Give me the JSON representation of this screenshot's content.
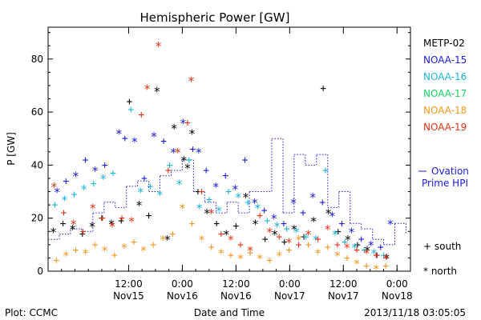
{
  "chart_data": {
    "type": "scatter",
    "title": "Hemispheric Power [GW]",
    "ylabel": "P [GW]",
    "xlabel": "Date and Time",
    "ylim": [
      0,
      92
    ],
    "yticks": [
      0,
      20,
      40,
      60,
      80
    ],
    "xlim": [
      "2013-11-14T18:00",
      "2013-11-18T03:00"
    ],
    "xticks": [
      {
        "t": "2013-11-15T12:00",
        "line1": "12:00",
        "line2": "Nov15"
      },
      {
        "t": "2013-11-16T00:00",
        "line1": "0:00",
        "line2": "Nov16"
      },
      {
        "t": "2013-11-16T12:00",
        "line1": "12:00",
        "line2": "Nov16"
      },
      {
        "t": "2013-11-17T00:00",
        "line1": "0:00",
        "line2": "Nov17"
      },
      {
        "t": "2013-11-17T12:00",
        "line1": "12:00",
        "line2": "Nov17"
      },
      {
        "t": "2013-11-18T00:00",
        "line1": "0:00",
        "line2": "Nov18"
      }
    ],
    "series": [
      {
        "name": "METP-02",
        "color": "#000000",
        "points": [
          [
            "2013-11-14T19:10",
            15,
            "n"
          ],
          [
            "2013-11-14T21:20",
            18,
            "s"
          ],
          [
            "2013-11-14T23:30",
            16,
            "n"
          ],
          [
            "2013-11-15T01:40",
            14,
            "s"
          ],
          [
            "2013-11-15T03:50",
            17,
            "n"
          ],
          [
            "2013-11-15T06:00",
            20,
            "s"
          ],
          [
            "2013-11-15T08:10",
            18,
            "n"
          ],
          [
            "2013-11-15T10:20",
            19,
            "s"
          ],
          [
            "2013-11-15T12:10",
            64,
            "s"
          ],
          [
            "2013-11-15T14:20",
            25,
            "n"
          ],
          [
            "2013-11-15T16:30",
            21,
            "s"
          ],
          [
            "2013-11-15T18:20",
            68,
            "n"
          ],
          [
            "2013-11-15T20:40",
            12,
            "n"
          ],
          [
            "2013-11-15T22:10",
            54,
            "n"
          ],
          [
            "2013-11-16T00:20",
            42,
            "n"
          ],
          [
            "2013-11-16T01:10",
            39,
            "n"
          ],
          [
            "2013-11-16T02:10",
            52,
            "n"
          ],
          [
            "2013-11-16T03:30",
            30,
            "s"
          ],
          [
            "2013-11-16T05:30",
            22,
            "n"
          ],
          [
            "2013-11-16T07:40",
            18,
            "s"
          ],
          [
            "2013-11-16T09:50",
            14,
            "n"
          ],
          [
            "2013-11-16T12:00",
            17,
            "s"
          ],
          [
            "2013-11-16T14:10",
            28,
            "n"
          ],
          [
            "2013-11-16T16:20",
            18,
            "n"
          ],
          [
            "2013-11-16T18:30",
            12,
            "s"
          ],
          [
            "2013-11-16T20:40",
            14,
            "n"
          ],
          [
            "2013-11-16T22:50",
            11,
            "s"
          ],
          [
            "2013-11-17T01:00",
            16,
            "n"
          ],
          [
            "2013-11-17T03:10",
            13,
            "s"
          ],
          [
            "2013-11-17T05:20",
            19,
            "n"
          ],
          [
            "2013-11-17T07:30",
            69,
            "s"
          ],
          [
            "2013-11-17T08:40",
            22,
            "n"
          ],
          [
            "2013-11-17T10:50",
            15,
            "s"
          ],
          [
            "2013-11-17T13:00",
            12,
            "n"
          ],
          [
            "2013-11-17T15:10",
            10,
            "s"
          ],
          [
            "2013-11-17T17:20",
            8,
            "n"
          ],
          [
            "2013-11-17T19:30",
            6,
            "s"
          ],
          [
            "2013-11-17T21:40",
            5,
            "n"
          ]
        ]
      },
      {
        "name": "NOAA-15",
        "color": "#1a1adc",
        "points": [
          [
            "2013-11-14T20:00",
            30,
            "n"
          ],
          [
            "2013-11-14T22:00",
            34,
            "s"
          ],
          [
            "2013-11-15T00:10",
            36,
            "n"
          ],
          [
            "2013-11-15T02:20",
            42,
            "s"
          ],
          [
            "2013-11-15T04:30",
            38,
            "n"
          ],
          [
            "2013-11-15T06:40",
            40,
            "s"
          ],
          [
            "2013-11-15T09:50",
            52,
            "n"
          ],
          [
            "2013-11-15T11:10",
            50,
            "s"
          ],
          [
            "2013-11-15T13:20",
            49,
            "n"
          ],
          [
            "2013-11-15T15:30",
            35,
            "s"
          ],
          [
            "2013-11-15T17:40",
            51,
            "n"
          ],
          [
            "2013-11-15T19:50",
            49,
            "s"
          ],
          [
            "2013-11-15T22:00",
            45,
            "n"
          ],
          [
            "2013-11-16T00:10",
            56,
            "n"
          ],
          [
            "2013-11-16T02:20",
            46,
            "s"
          ],
          [
            "2013-11-16T03:40",
            45,
            "n"
          ],
          [
            "2013-11-16T05:20",
            38,
            "s"
          ],
          [
            "2013-11-16T07:30",
            32,
            "n"
          ],
          [
            "2013-11-16T09:40",
            36,
            "s"
          ],
          [
            "2013-11-16T11:50",
            31,
            "n"
          ],
          [
            "2013-11-16T14:00",
            42,
            "s"
          ],
          [
            "2013-11-16T16:10",
            26,
            "n"
          ],
          [
            "2013-11-16T18:20",
            23,
            "s"
          ],
          [
            "2013-11-16T20:30",
            20,
            "n"
          ],
          [
            "2013-11-16T22:40",
            18,
            "s"
          ],
          [
            "2013-11-17T00:50",
            26,
            "n"
          ],
          [
            "2013-11-17T03:00",
            22,
            "s"
          ],
          [
            "2013-11-17T05:10",
            28,
            "n"
          ],
          [
            "2013-11-17T07:20",
            26,
            "s"
          ],
          [
            "2013-11-17T09:30",
            21,
            "n"
          ],
          [
            "2013-11-17T11:40",
            18,
            "s"
          ],
          [
            "2013-11-17T13:50",
            15,
            "n"
          ],
          [
            "2013-11-17T16:00",
            12,
            "s"
          ],
          [
            "2013-11-17T18:10",
            10,
            "n"
          ],
          [
            "2013-11-17T20:20",
            9,
            "s"
          ],
          [
            "2013-11-17T22:30",
            18,
            "n"
          ]
        ]
      },
      {
        "name": "NOAA-16",
        "color": "#19b4d7",
        "points": [
          [
            "2013-11-14T19:30",
            25,
            "s"
          ],
          [
            "2013-11-14T21:40",
            27,
            "n"
          ],
          [
            "2013-11-14T23:50",
            29,
            "s"
          ],
          [
            "2013-11-15T02:00",
            31,
            "n"
          ],
          [
            "2013-11-15T04:10",
            33,
            "s"
          ],
          [
            "2013-11-15T06:20",
            35,
            "n"
          ],
          [
            "2013-11-15T08:30",
            37,
            "s"
          ],
          [
            "2013-11-15T12:30",
            61,
            "s"
          ],
          [
            "2013-11-15T14:40",
            30,
            "n"
          ],
          [
            "2013-11-15T16:50",
            32,
            "s"
          ],
          [
            "2013-11-15T19:00",
            29,
            "n"
          ],
          [
            "2013-11-15T21:10",
            40,
            "s"
          ],
          [
            "2013-11-15T23:20",
            33,
            "n"
          ],
          [
            "2013-11-16T01:30",
            42,
            "s"
          ],
          [
            "2013-11-16T03:50",
            24,
            "n"
          ],
          [
            "2013-11-16T06:00",
            27,
            "s"
          ],
          [
            "2013-11-16T08:10",
            23,
            "n"
          ],
          [
            "2013-11-16T10:20",
            30,
            "s"
          ],
          [
            "2013-11-16T12:30",
            28,
            "n"
          ],
          [
            "2013-11-16T14:40",
            26,
            "s"
          ],
          [
            "2013-11-16T16:50",
            24,
            "n"
          ],
          [
            "2013-11-16T19:00",
            19,
            "s"
          ],
          [
            "2013-11-16T21:10",
            17,
            "n"
          ],
          [
            "2013-11-16T23:20",
            16,
            "s"
          ],
          [
            "2013-11-17T01:30",
            15,
            "n"
          ],
          [
            "2013-11-17T03:40",
            13,
            "s"
          ],
          [
            "2013-11-17T05:50",
            12,
            "n"
          ],
          [
            "2013-11-17T08:00",
            38,
            "s"
          ],
          [
            "2013-11-17T10:10",
            14,
            "n"
          ],
          [
            "2013-11-17T12:20",
            11,
            "s"
          ],
          [
            "2013-11-17T14:30",
            9,
            "n"
          ],
          [
            "2013-11-17T16:40",
            8,
            "s"
          ],
          [
            "2013-11-17T18:50",
            7,
            "n"
          ],
          [
            "2013-11-17T21:00",
            6,
            "s"
          ]
        ]
      },
      {
        "name": "NOAA-17",
        "color": "#19d264",
        "points": []
      },
      {
        "name": "NOAA-18",
        "color": "#f5961e",
        "points": [
          [
            "2013-11-14T19:50",
            4,
            "s"
          ],
          [
            "2013-11-14T22:00",
            6,
            "n"
          ],
          [
            "2013-11-15T00:10",
            8,
            "s"
          ],
          [
            "2013-11-15T02:20",
            7,
            "n"
          ],
          [
            "2013-11-15T04:30",
            10,
            "s"
          ],
          [
            "2013-11-15T06:40",
            8,
            "n"
          ],
          [
            "2013-11-15T08:50",
            6,
            "s"
          ],
          [
            "2013-11-15T11:00",
            9,
            "n"
          ],
          [
            "2013-11-15T13:10",
            11,
            "s"
          ],
          [
            "2013-11-15T15:20",
            8,
            "n"
          ],
          [
            "2013-11-15T17:30",
            10,
            "s"
          ],
          [
            "2013-11-15T19:40",
            12,
            "n"
          ],
          [
            "2013-11-15T21:50",
            14,
            "s"
          ],
          [
            "2013-11-16T00:00",
            24,
            "n"
          ],
          [
            "2013-11-16T02:10",
            18,
            "s"
          ],
          [
            "2013-11-16T04:20",
            12,
            "n"
          ],
          [
            "2013-11-16T06:30",
            9,
            "s"
          ],
          [
            "2013-11-16T08:40",
            7,
            "n"
          ],
          [
            "2013-11-16T10:50",
            6,
            "s"
          ],
          [
            "2013-11-16T13:00",
            5,
            "n"
          ],
          [
            "2013-11-16T15:10",
            7,
            "s"
          ],
          [
            "2013-11-16T17:20",
            5,
            "n"
          ],
          [
            "2013-11-16T19:30",
            4,
            "s"
          ],
          [
            "2013-11-16T21:40",
            6,
            "n"
          ],
          [
            "2013-11-16T23:50",
            8,
            "s"
          ],
          [
            "2013-11-17T02:00",
            12,
            "n"
          ],
          [
            "2013-11-17T04:10",
            10,
            "s"
          ],
          [
            "2013-11-17T06:20",
            7,
            "n"
          ],
          [
            "2013-11-17T08:30",
            9,
            "s"
          ],
          [
            "2013-11-17T10:40",
            6,
            "n"
          ],
          [
            "2013-11-17T12:50",
            5,
            "s"
          ],
          [
            "2013-11-17T15:00",
            3,
            "n"
          ],
          [
            "2013-11-17T17:10",
            2,
            "s"
          ],
          [
            "2013-11-17T19:20",
            1,
            "n"
          ],
          [
            "2013-11-17T21:30",
            2,
            "s"
          ]
        ]
      },
      {
        "name": "NOAA-19",
        "color": "#e63214",
        "points": [
          [
            "2013-11-14T19:20",
            32,
            "n"
          ],
          [
            "2013-11-14T21:30",
            22,
            "s"
          ],
          [
            "2013-11-14T23:40",
            18,
            "n"
          ],
          [
            "2013-11-15T01:50",
            15,
            "s"
          ],
          [
            "2013-11-15T04:00",
            24,
            "n"
          ],
          [
            "2013-11-15T06:10",
            20,
            "s"
          ],
          [
            "2013-11-15T08:20",
            17,
            "n"
          ],
          [
            "2013-11-15T10:30",
            20,
            "s"
          ],
          [
            "2013-11-15T12:40",
            19,
            "n"
          ],
          [
            "2013-11-15T14:50",
            59,
            "s"
          ],
          [
            "2013-11-15T16:10",
            69,
            "n"
          ],
          [
            "2013-11-15T18:40",
            85,
            "n"
          ],
          [
            "2013-11-15T20:50",
            38,
            "s"
          ],
          [
            "2013-11-15T23:00",
            45,
            "n"
          ],
          [
            "2013-11-16T01:10",
            56,
            "s"
          ],
          [
            "2013-11-16T02:00",
            72,
            "n"
          ],
          [
            "2013-11-16T04:20",
            30,
            "s"
          ],
          [
            "2013-11-16T06:30",
            22,
            "n"
          ],
          [
            "2013-11-16T08:40",
            14,
            "s"
          ],
          [
            "2013-11-16T10:50",
            12,
            "n"
          ],
          [
            "2013-11-16T13:00",
            10,
            "s"
          ],
          [
            "2013-11-16T15:10",
            8,
            "n"
          ],
          [
            "2013-11-16T17:20",
            21,
            "s"
          ],
          [
            "2013-11-16T19:30",
            15,
            "n"
          ],
          [
            "2013-11-16T21:40",
            13,
            "s"
          ],
          [
            "2013-11-16T23:50",
            11,
            "n"
          ],
          [
            "2013-11-17T02:00",
            10,
            "s"
          ],
          [
            "2013-11-17T04:10",
            14,
            "n"
          ],
          [
            "2013-11-17T06:20",
            12,
            "s"
          ],
          [
            "2013-11-17T08:30",
            16,
            "n"
          ],
          [
            "2013-11-17T10:40",
            10,
            "s"
          ],
          [
            "2013-11-17T12:50",
            9,
            "n"
          ],
          [
            "2013-11-17T15:00",
            8,
            "s"
          ],
          [
            "2013-11-17T17:10",
            7,
            "n"
          ],
          [
            "2013-11-17T19:20",
            6,
            "s"
          ],
          [
            "2013-11-17T21:30",
            5,
            "n"
          ]
        ]
      }
    ],
    "ovation": {
      "name": "Ovation Prime HPI",
      "color": "#1a1adc",
      "points": [
        [
          "2013-11-14T18:00",
          12
        ],
        [
          "2013-11-14T20:30",
          14
        ],
        [
          "2013-11-14T23:00",
          16
        ],
        [
          "2013-11-15T01:30",
          15
        ],
        [
          "2013-11-15T04:00",
          22
        ],
        [
          "2013-11-15T06:30",
          26
        ],
        [
          "2013-11-15T09:00",
          24
        ],
        [
          "2013-11-15T11:30",
          32
        ],
        [
          "2013-11-15T14:00",
          34
        ],
        [
          "2013-11-15T16:30",
          30
        ],
        [
          "2013-11-15T19:00",
          36
        ],
        [
          "2013-11-15T21:30",
          38
        ],
        [
          "2013-11-16T00:00",
          42
        ],
        [
          "2013-11-16T02:30",
          30
        ],
        [
          "2013-11-16T05:00",
          26
        ],
        [
          "2013-11-16T07:30",
          22
        ],
        [
          "2013-11-16T10:00",
          26
        ],
        [
          "2013-11-16T12:30",
          22
        ],
        [
          "2013-11-16T15:00",
          30
        ],
        [
          "2013-11-16T17:30",
          30
        ],
        [
          "2013-11-16T20:00",
          50
        ],
        [
          "2013-11-16T22:30",
          22
        ],
        [
          "2013-11-17T01:00",
          44
        ],
        [
          "2013-11-17T03:30",
          40
        ],
        [
          "2013-11-17T06:00",
          44
        ],
        [
          "2013-11-17T08:30",
          24
        ],
        [
          "2013-11-17T11:00",
          30
        ],
        [
          "2013-11-17T13:30",
          18
        ],
        [
          "2013-11-17T16:00",
          16
        ],
        [
          "2013-11-17T18:30",
          12
        ],
        [
          "2013-11-17T21:00",
          10
        ],
        [
          "2013-11-17T23:30",
          18
        ],
        [
          "2013-11-18T02:00",
          14
        ]
      ]
    },
    "legend_marker_south": "+ south",
    "legend_marker_north": "* north"
  },
  "footer": {
    "plot_credit": "Plot: CCMC",
    "timestamp": "2013/11/18 03:05:05"
  }
}
